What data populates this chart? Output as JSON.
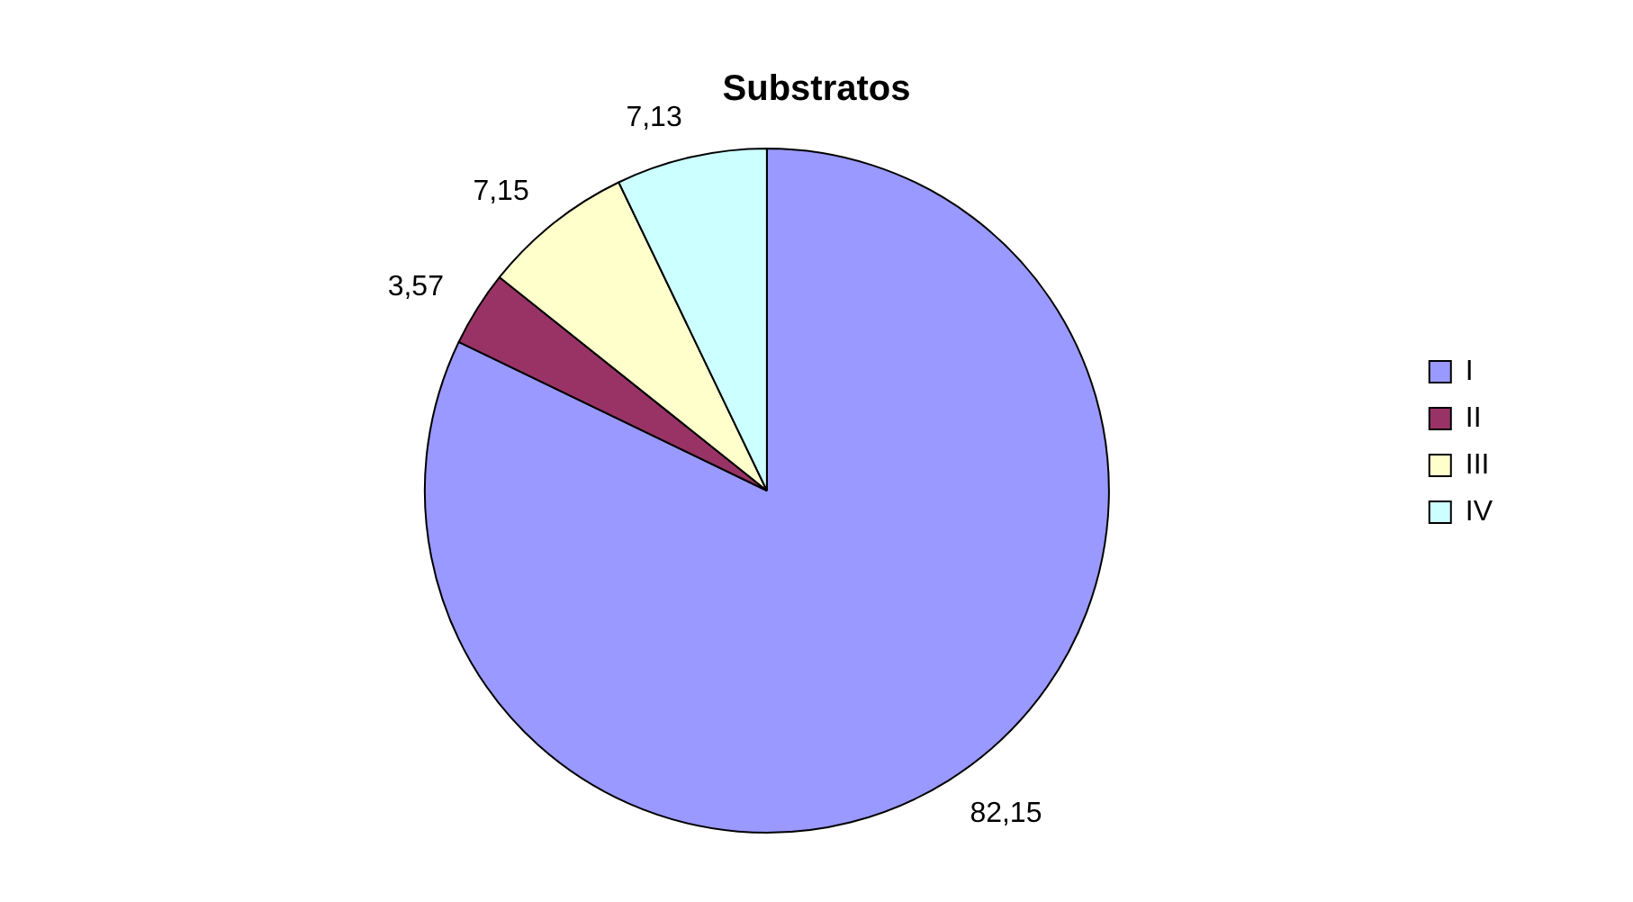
{
  "chart_data": {
    "type": "pie",
    "title": "Substratos",
    "categories": [
      "I",
      "II",
      "III",
      "IV"
    ],
    "values": [
      82.15,
      3.57,
      7.15,
      7.13
    ],
    "colors": [
      "#9999ff",
      "#993366",
      "#ffffcc",
      "#ccffff"
    ],
    "value_labels": [
      "82,15",
      "3,57",
      "7,15",
      "7,13"
    ],
    "legend": "right"
  }
}
